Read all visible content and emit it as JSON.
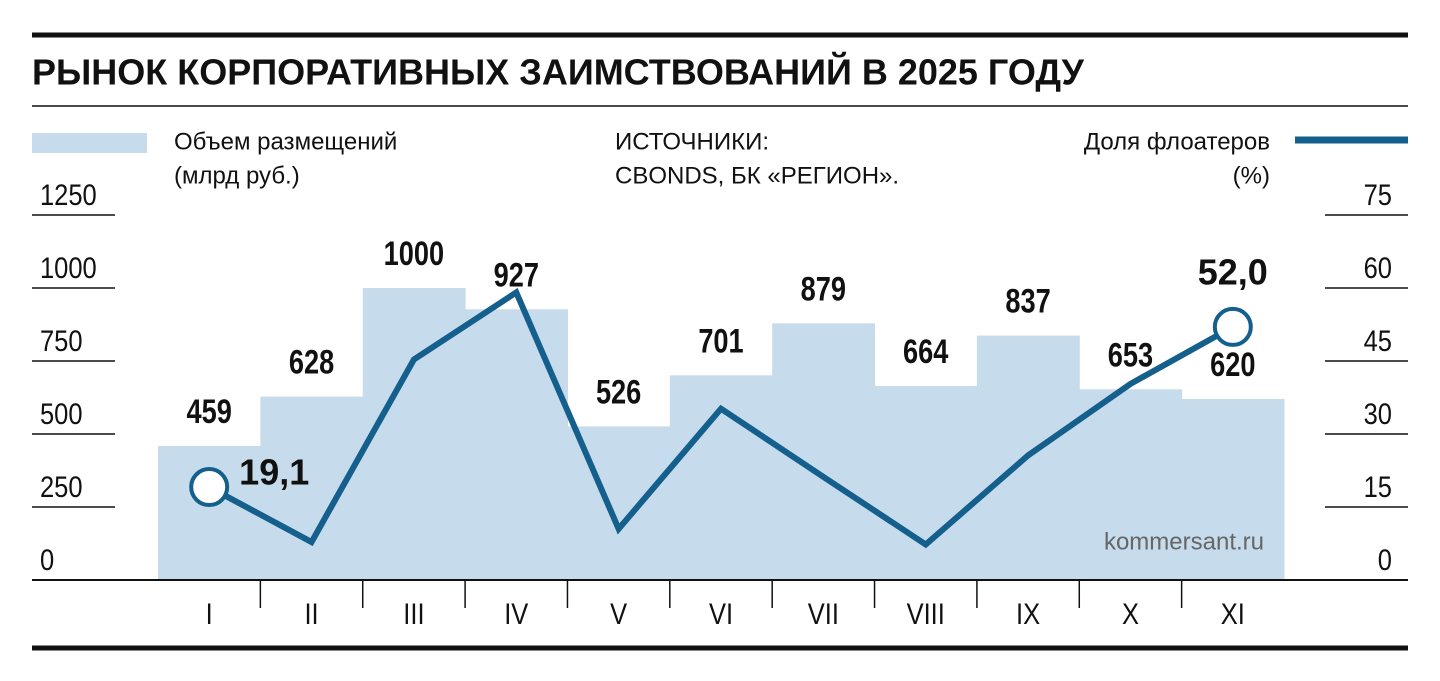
{
  "chart_data": {
    "type": "bar-line",
    "title": "РЫНОК КОРПОРАТИВНЫХ ЗАИМСТВОВАНИЙ В 2025 ГОДУ",
    "y_label": "(млрд руб.)",
    "y2_label": "(%)",
    "source_label": "ИСТОЧНИКИ:",
    "source": "CBONDS, БК «РЕГИОН».",
    "watermark": "kommersant.ru",
    "categories": [
      "I",
      "II",
      "III",
      "IV",
      "V",
      "VI",
      "VII",
      "VIII",
      "IX",
      "X",
      "XI"
    ],
    "series": [
      {
        "name": "Объем размещений",
        "type": "bar",
        "color": "#c6dbeb",
        "values": [
          459,
          628,
          1000,
          927,
          526,
          701,
          879,
          664,
          837,
          653,
          620
        ]
      },
      {
        "name": "Доля флоатеров",
        "type": "line",
        "axis": "y2",
        "color": "#155f8d",
        "values": [
          19.1,
          7.8,
          45.3,
          59.1,
          10.5,
          35.2,
          21.2,
          7.3,
          25.6,
          40.3,
          52.0
        ],
        "value_labels": [
          "19,1",
          null,
          null,
          null,
          null,
          null,
          null,
          null,
          null,
          null,
          "52,0"
        ]
      }
    ],
    "ylim": [
      0,
      1250
    ],
    "yticks": [
      0,
      250,
      500,
      750,
      1000,
      1250
    ],
    "y2lim": [
      0,
      75
    ],
    "y2ticks": [
      0,
      15,
      30,
      45,
      60,
      75
    ],
    "grid": false
  }
}
